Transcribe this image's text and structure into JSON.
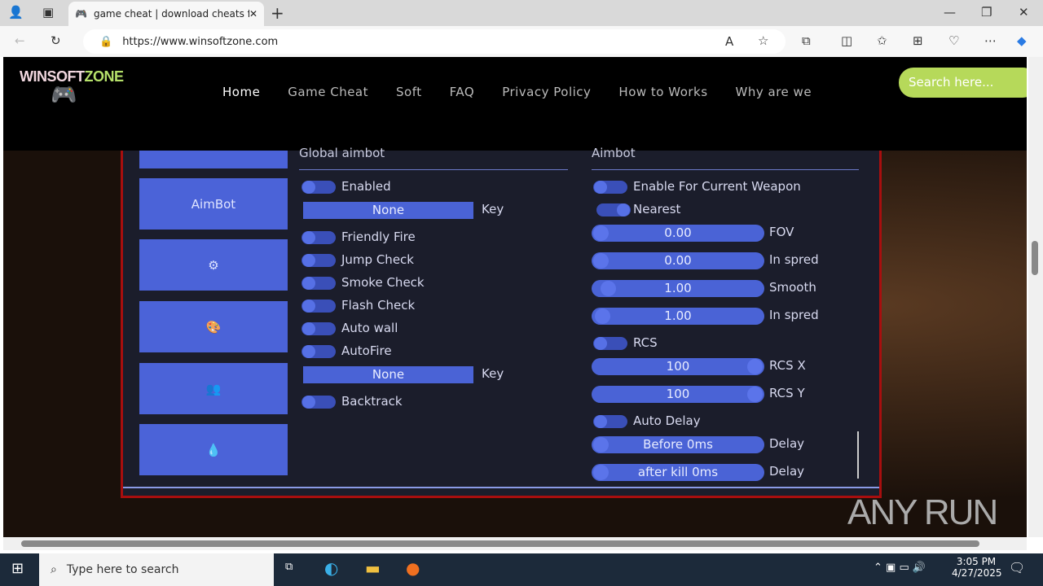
{
  "browser": {
    "tab_title": "game cheat | download cheats for",
    "url": "https://www.winsoftzone.com"
  },
  "site": {
    "logo_a": "WINSOFT",
    "logo_b": "ZONE",
    "nav": [
      "Home",
      "Game Cheat",
      "Soft",
      "FAQ",
      "Privacy Policy",
      "How to Works",
      "Why are we"
    ],
    "search_placeholder": "Search here..."
  },
  "cheat": {
    "sidebar": [
      {
        "label": ""
      },
      {
        "label": "AimBot"
      },
      {
        "icon": "gear-icon"
      },
      {
        "icon": "palette-icon"
      },
      {
        "icon": "users-gear-icon"
      },
      {
        "icon": "drop-icon"
      }
    ],
    "left": {
      "title": "Global aimbot",
      "enabled": "Enabled",
      "key_value": "None",
      "key_label": "Key",
      "friendly_fire": "Friendly Fire",
      "jump_check": "Jump Check",
      "smoke_check": "Smoke Check",
      "flash_check": "Flash Check",
      "auto_wall": "Auto wall",
      "autofire": "AutoFire",
      "key2_value": "None",
      "key2_label": "Key",
      "backtrack": "Backtrack"
    },
    "right": {
      "title": "Aimbot",
      "enable_weapon": "Enable For Current Weapon",
      "nearest": "Nearest",
      "sliders": [
        {
          "value": "0.00",
          "label": "FOV",
          "level": 0
        },
        {
          "value": "0.00",
          "label": "In spred",
          "level": 0
        },
        {
          "value": "1.00",
          "label": "Smooth",
          "level": 0.05
        },
        {
          "value": "1.00",
          "label": "In spred",
          "level": 0.01
        }
      ],
      "rcs": "RCS",
      "rcs_sliders": [
        {
          "value": "100",
          "label": "RCS X",
          "level": 1
        },
        {
          "value": "100",
          "label": "RCS Y",
          "level": 1
        }
      ],
      "auto_delay": "Auto Delay",
      "delays": [
        {
          "value": "Before 0ms",
          "label": "Delay"
        },
        {
          "value": "after kill 0ms",
          "label": "Delay"
        }
      ]
    }
  },
  "watermark": "ANY RUN",
  "taskbar": {
    "search_placeholder": "Type here to search",
    "time": "3:05 PM",
    "date": "4/27/2025"
  }
}
